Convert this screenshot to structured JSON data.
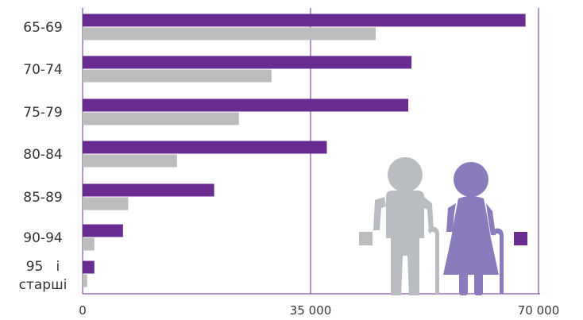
{
  "chart_data": {
    "type": "bar",
    "orientation": "horizontal",
    "categories": [
      "65-69",
      "70-74",
      "75-79",
      "80-84",
      "85-89",
      "90-94",
      "95 і старші"
    ],
    "series": [
      {
        "values": [
          68000,
          50500,
          50000,
          37500,
          20200,
          6200,
          1800
        ],
        "color": "#6a2c91"
      },
      {
        "values": [
          45000,
          29000,
          24000,
          14500,
          7000,
          1800,
          700
        ],
        "color": "#bdbdbd"
      }
    ],
    "xlim": [
      0,
      70000
    ],
    "x_ticks": [
      0,
      35000,
      70000
    ],
    "x_tick_labels": [
      "0",
      "35 000",
      "70 000"
    ],
    "grid": "vertical",
    "legend_placement": "inside-right"
  },
  "colors": {
    "axis": "#6a2c91",
    "men_figure": "#b9bcc0",
    "women_figure": "#8a7bbd"
  },
  "icons": [
    "elderly-man-with-cane-icon",
    "elderly-woman-with-cane-icon"
  ]
}
